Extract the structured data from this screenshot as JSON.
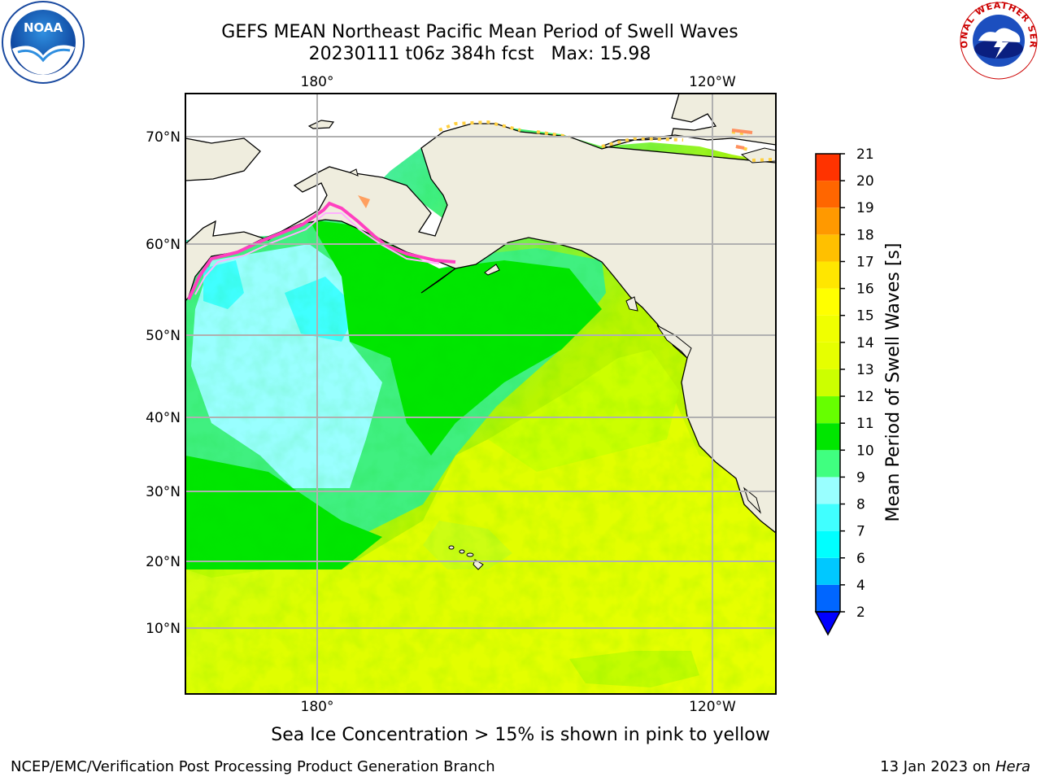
{
  "title": {
    "line1": "GEFS MEAN Northeast Pacific Mean Period of Swell Waves",
    "line2": "20230111 t06z 384h fcst   Max: 15.98"
  },
  "map": {
    "lon_labels_top": [
      "180°",
      "120°W"
    ],
    "lon_labels_bottom": [
      "180°",
      "120°W"
    ],
    "lat_labels": [
      "70°N",
      "60°N",
      "50°N",
      "40°N",
      "30°N",
      "20°N",
      "10°N"
    ],
    "land_color": "#efedde",
    "grid_color": "#b0b0b0"
  },
  "colorbar": {
    "label": "Mean Period of Swell Waves [s]",
    "ticks": [
      "2",
      "4",
      "6",
      "7",
      "8",
      "9",
      "10",
      "11",
      "12",
      "13",
      "14",
      "15",
      "16",
      "17",
      "18",
      "19",
      "20",
      "21"
    ],
    "colors": [
      "#0066ff",
      "#00c8ff",
      "#00ffff",
      "#40ffff",
      "#99ffff",
      "#40ff80",
      "#00e600",
      "#66ff00",
      "#ccff00",
      "#e6ff00",
      "#f0ff00",
      "#ffff00",
      "#ffe600",
      "#ffc000",
      "#ff9900",
      "#ff6600",
      "#ff3300",
      "#ff0000"
    ],
    "extend_color": "#0000ff"
  },
  "note": "Sea Ice Concentration > 15% is shown in pink to yellow",
  "footer": {
    "left": "NCEP/EMC/Verification Post Processing Product Generation Branch",
    "right_prefix": "13 Jan 2023 on ",
    "right_machine": "Hera"
  },
  "logos": {
    "noaa": "NOAA",
    "nws": "NATIONAL WEATHER SERVICE"
  }
}
